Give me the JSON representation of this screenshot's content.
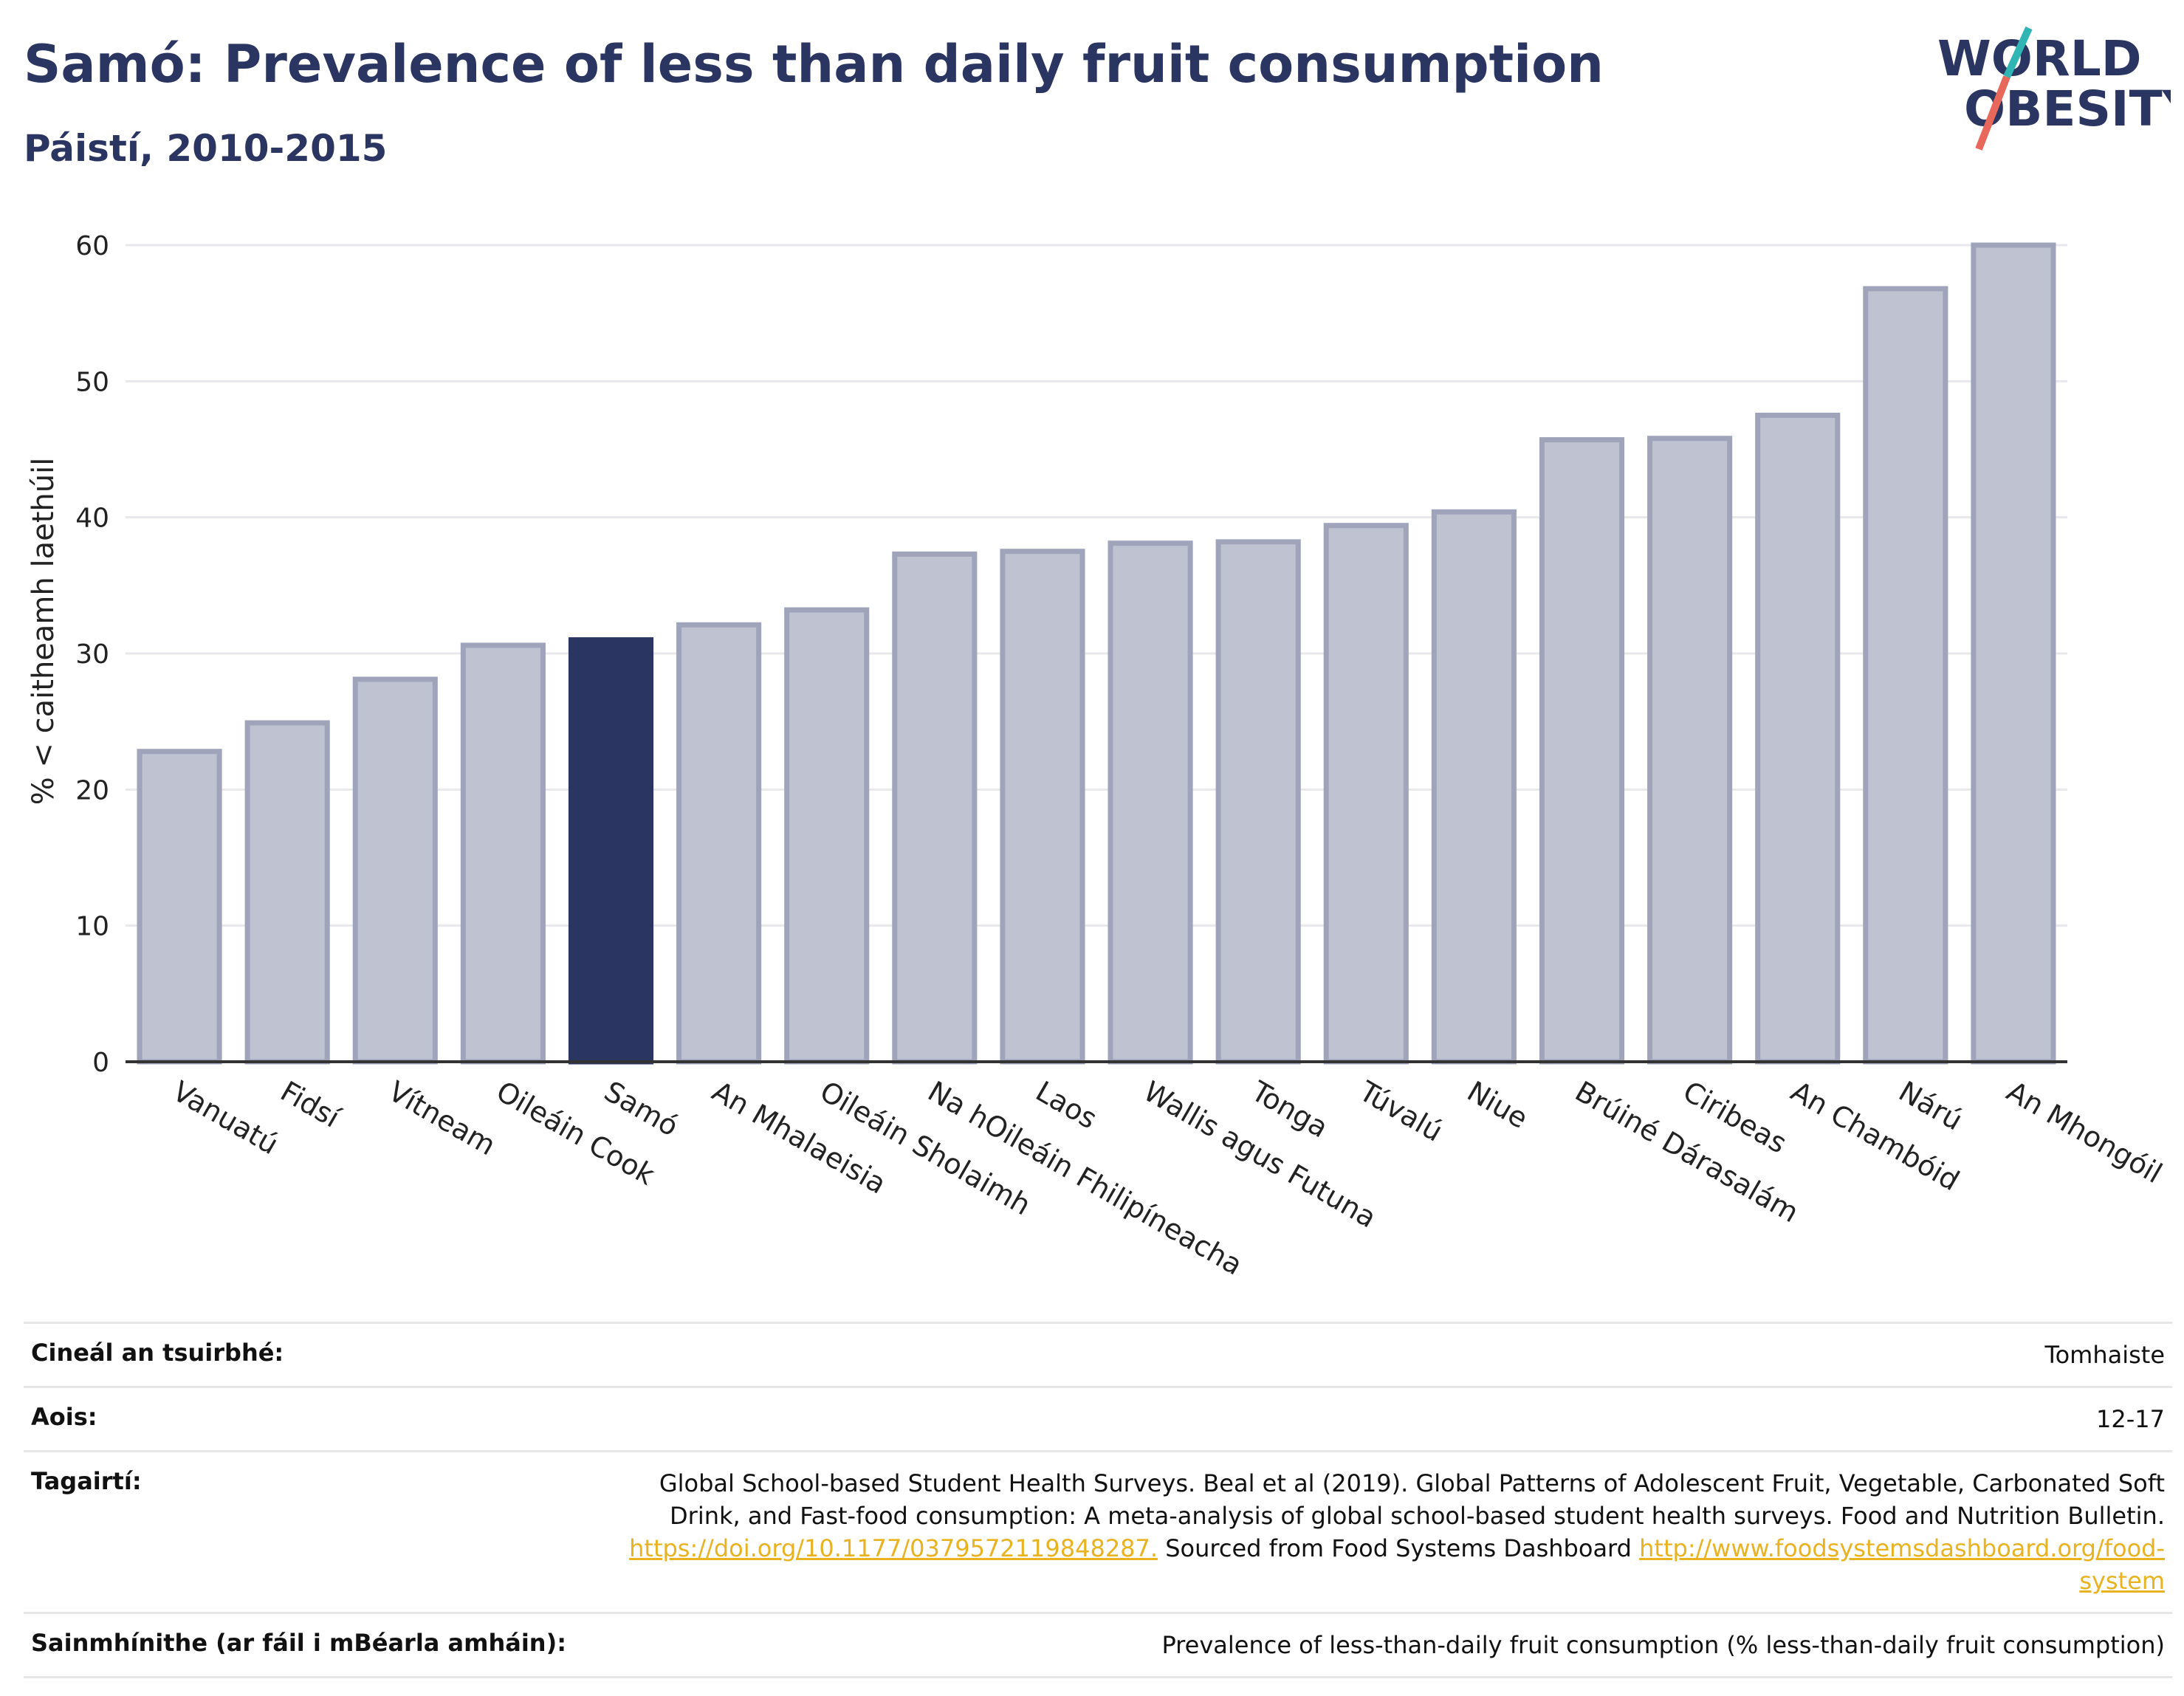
{
  "header": {
    "title": "Samó: Prevalence of less than daily fruit consumption",
    "subtitle": "Páistí, 2010-2015"
  },
  "logo": {
    "line1": "WORLD",
    "line2": "OBESITY",
    "accent_teal": "#2fb5b4",
    "accent_red": "#e8685b"
  },
  "colors": {
    "bar": "#bfc2d0",
    "bar_stroke": "#9fa4bb",
    "highlight": "#2b3561",
    "grid": "#e8e8ec"
  },
  "chart_data": {
    "type": "bar",
    "title": "Samó: Prevalence of less than daily fruit consumption",
    "subtitle": "Páistí, 2010-2015",
    "ylabel": "% < caitheamh laethúil",
    "xlabel": "",
    "ylim": [
      0,
      60
    ],
    "yticks": [
      0,
      10,
      20,
      30,
      40,
      50,
      60
    ],
    "grid": true,
    "highlight": "Samó",
    "categories": [
      "Vanuatú",
      "Fidsí",
      "Vítneam",
      "Oileáin Cook",
      "Samó",
      "An Mhalaeisia",
      "Oileáin Sholaimh",
      "Na hOileáin Fhilipíneacha",
      "Laos",
      "Wallis agus Futuna",
      "Tonga",
      "Túvalú",
      "Niue",
      "Brúiné Dárasalám",
      "Ciribeas",
      "An Chambóid",
      "Nárú",
      "An Mhongóil"
    ],
    "values": [
      22.8,
      24.9,
      28.1,
      30.6,
      31.0,
      32.1,
      33.2,
      37.3,
      37.5,
      38.1,
      38.2,
      39.4,
      40.4,
      45.7,
      45.8,
      47.5,
      56.8,
      60.0
    ]
  },
  "info": [
    {
      "key": "Cineál an tsuirbhé:",
      "value": "Tomhaiste"
    },
    {
      "key": "Aois:",
      "value": "12-17"
    },
    {
      "key": "Tagairtí:",
      "text1": "Global School-based Student Health Surveys. Beal et al (2019). Global Patterns of Adolescent Fruit, Vegetable, Carbonated Soft Drink, and Fast-food consumption: A meta-analysis of global school-based student health surveys. Food and Nutrition Bulletin.",
      "link1": "https://doi.org/10.1177/0379572119848287.",
      "text2": "Sourced from Food Systems Dashboard",
      "link2": "http://www.foodsystemsdashboard.org/food-system"
    },
    {
      "key": "Sainmhínithe (ar fáil i mBéarla amháin):",
      "value": "Prevalence of less-than-daily fruit consumption (% less-than-daily fruit consumption)"
    }
  ]
}
